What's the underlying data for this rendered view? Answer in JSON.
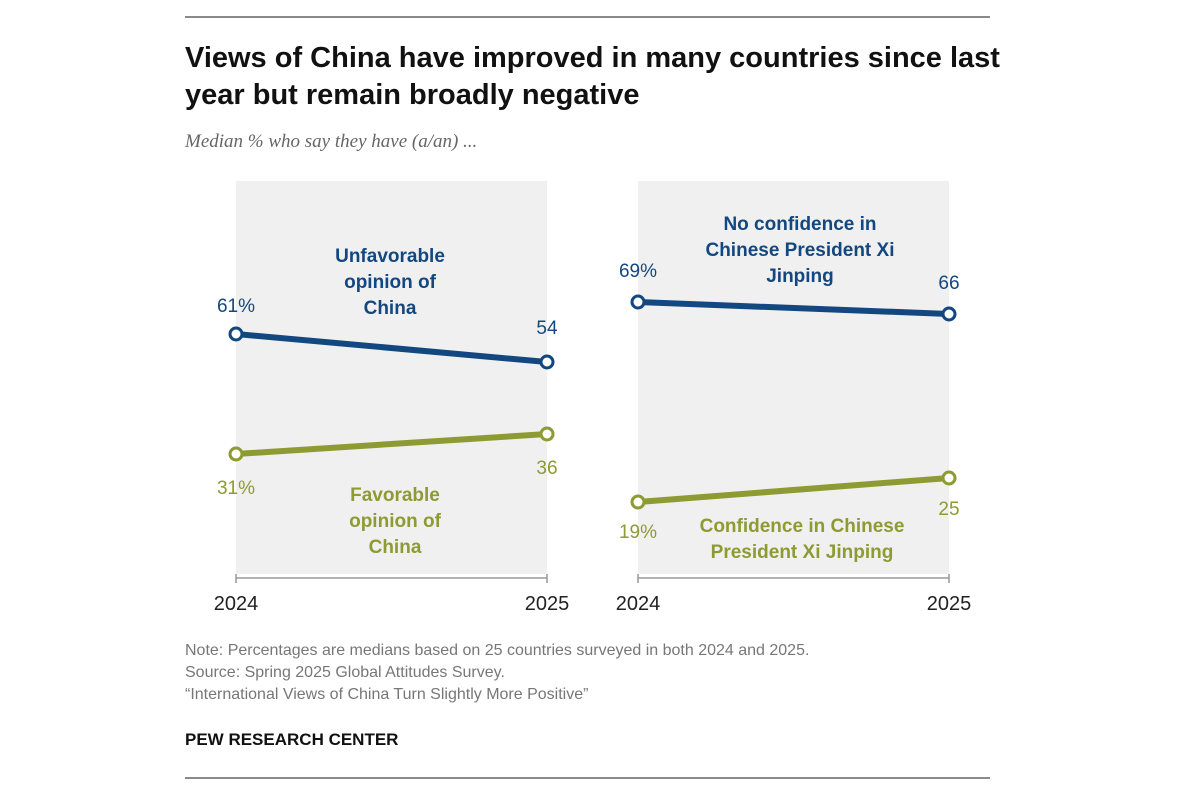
{
  "title": "Views of China have improved in many countries since last year but remain broadly negative",
  "subtitle": "Median % who say they have (a/an) ...",
  "colors": {
    "blue": "#13477f",
    "green": "#8d9b32",
    "panel": "#f0f0f0"
  },
  "chart_data": [
    {
      "type": "line",
      "categories": [
        "2024",
        "2025"
      ],
      "ylim": [
        0,
        100
      ],
      "grid": false,
      "series": [
        {
          "name": "Unfavorable opinion of China",
          "values": [
            61,
            54
          ],
          "labels": [
            "61%",
            "54"
          ],
          "color": "blue"
        },
        {
          "name": "Favorable opinion of China",
          "values": [
            31,
            36
          ],
          "labels": [
            "31%",
            "36"
          ],
          "color": "green"
        }
      ]
    },
    {
      "type": "line",
      "categories": [
        "2024",
        "2025"
      ],
      "ylim": [
        0,
        100
      ],
      "grid": false,
      "series": [
        {
          "name": "No confidence in Chinese President Xi Jinping",
          "values": [
            69,
            66
          ],
          "labels": [
            "69%",
            "66"
          ],
          "color": "blue"
        },
        {
          "name": "Confidence in Chinese President Xi Jinping",
          "values": [
            19,
            25
          ],
          "labels": [
            "19%",
            "25"
          ],
          "color": "green"
        }
      ]
    }
  ],
  "notes": {
    "note": "Note: Percentages are medians based on 25 countries surveyed in both 2024 and 2025.",
    "source": "Source: Spring 2025 Global Attitudes Survey.",
    "report": "“International Views of China Turn Slightly More Positive”"
  },
  "brand": "PEW RESEARCH CENTER"
}
